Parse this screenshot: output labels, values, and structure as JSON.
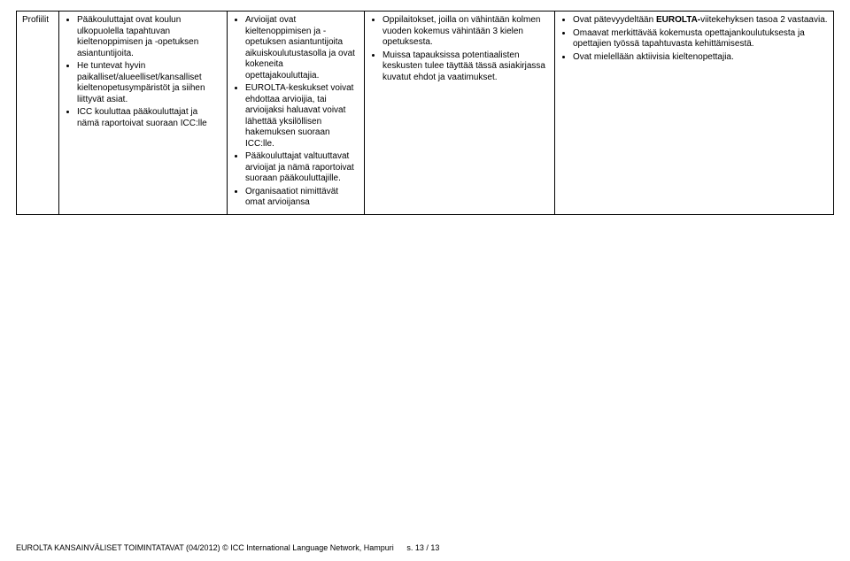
{
  "row_header": "Profiilit",
  "col1": {
    "items": [
      "Pääkouluttajat ovat koulun ulkopuolella tapahtuvan kieltenoppimisen ja -opetuksen asiantuntijoita.",
      "He tuntevat hyvin paikalliset/alueelliset/kansalliset kieltenopetusympäristöt ja siihen liittyvät asiat.",
      "ICC kouluttaa pääkouluttajat ja nämä raportoivat suoraan ICC:lle"
    ]
  },
  "col2": {
    "items": [
      "Arvioijat ovat kieltenoppimisen ja -opetuksen asiantuntijoita aikuiskoulutustasolla ja ovat kokeneita opettajakouluttajia.",
      "EUROLTA-keskukset voivat ehdottaa arvioijia, tai arvioijaksi haluavat voivat lähettää yksilöllisen hakemuksen suoraan ICC:lle.",
      "Pääkouluttajat valtuuttavat arvioijat ja nämä raportoivat suoraan pääkouluttajille.",
      "Organisaatiot nimittävät omat arvioijansa"
    ]
  },
  "col3": {
    "items": [
      "Oppilaitokset, joilla on vähintään kolmen vuoden kokemus vähintään 3 kielen opetuksesta.",
      "Muissa tapauksissa potentiaalisten keskusten tulee täyttää tässä asiakirjassa kuvatut ehdot ja vaatimukset."
    ]
  },
  "col4": {
    "items": [
      "Ovat pätevyydeltään EUROLTA-viitekehyksen tasoa 2 vastaavia.",
      "Omaavat merkittävää kokemusta opettajankoulutuksesta ja opettajien työssä tapahtuvasta kehittämisestä.",
      "Ovat mielellään aktiivisia kieltenopettajia."
    ]
  },
  "footer": {
    "line": "EUROLTA KANSAINVÄLISET TOIMINTATAVAT (04/2012) © ICC International Language Network, Hampuri",
    "page": "s. 13 / 13"
  },
  "bold_word_c4": "EUROLTA-"
}
